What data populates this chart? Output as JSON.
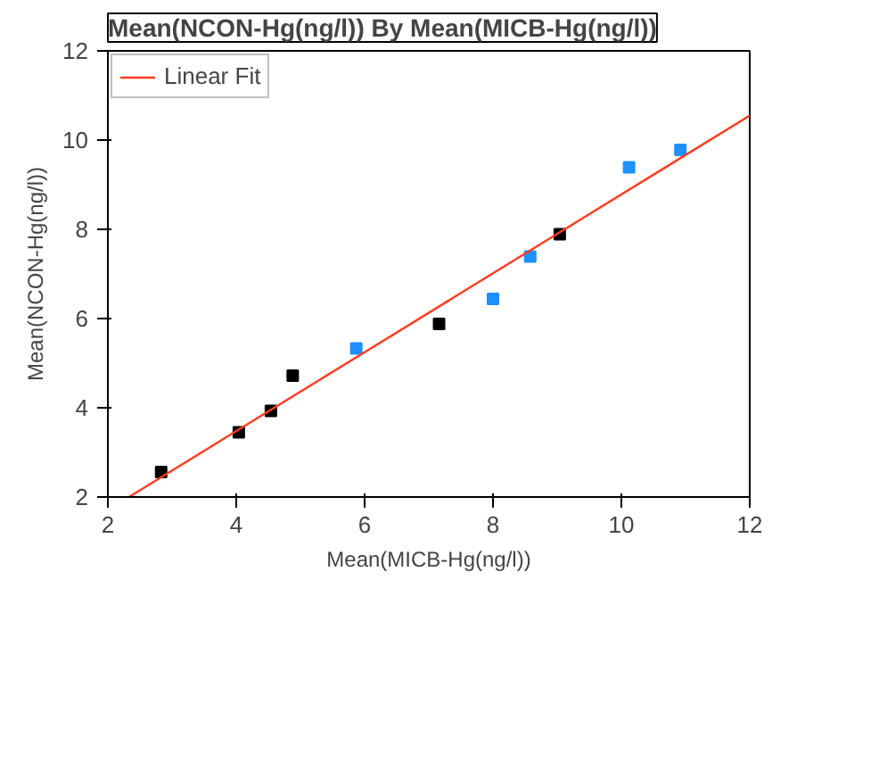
{
  "chart_data": {
    "type": "scatter",
    "title": "Mean(NCON-Hg(ng/l)) By Mean(MICB-Hg(ng/l))",
    "xlabel": "Mean(MICB-Hg(ng/l))",
    "ylabel": "Mean(NCON-Hg(ng/l))",
    "xlim": [
      2,
      12
    ],
    "ylim": [
      2,
      12
    ],
    "xticks": [
      2,
      4,
      6,
      8,
      10,
      12
    ],
    "yticks": [
      2,
      4,
      6,
      8,
      10,
      12
    ],
    "grid": false,
    "legend": "top left",
    "series": [
      {
        "color": "#000000",
        "marker": "square",
        "x": [
          2.83,
          4.04,
          4.54,
          4.88,
          7.16,
          9.04
        ],
        "values": [
          2.56,
          3.45,
          3.93,
          4.72,
          5.88,
          7.89
        ]
      },
      {
        "color": "#1e90ff",
        "marker": "square",
        "x": [
          5.87,
          8.0,
          8.58,
          10.12,
          10.92
        ],
        "values": [
          5.33,
          6.44,
          7.39,
          9.39,
          9.78
        ]
      },
      {
        "type": "line",
        "name": "Linear Fit",
        "color": "#ff3b1f",
        "x": [
          2.33,
          12
        ],
        "values": [
          2,
          10.55
        ],
        "line_style": "solid"
      }
    ]
  }
}
